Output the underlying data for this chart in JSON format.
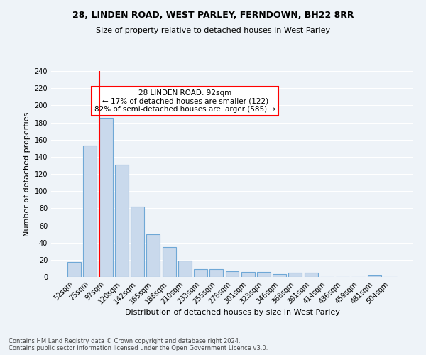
{
  "title": "28, LINDEN ROAD, WEST PARLEY, FERNDOWN, BH22 8RR",
  "subtitle": "Size of property relative to detached houses in West Parley",
  "xlabel": "Distribution of detached houses by size in West Parley",
  "ylabel": "Number of detached properties",
  "bar_color": "#c9d9ec",
  "bar_edge_color": "#6fa8d6",
  "vline_color": "red",
  "annotation_title": "28 LINDEN ROAD: 92sqm",
  "annotation_line2": "← 17% of detached houses are smaller (122)",
  "annotation_line3": "82% of semi-detached houses are larger (585) →",
  "categories": [
    "52sqm",
    "75sqm",
    "97sqm",
    "120sqm",
    "142sqm",
    "165sqm",
    "188sqm",
    "210sqm",
    "233sqm",
    "255sqm",
    "278sqm",
    "301sqm",
    "323sqm",
    "346sqm",
    "368sqm",
    "391sqm",
    "414sqm",
    "436sqm",
    "459sqm",
    "481sqm",
    "504sqm"
  ],
  "values": [
    17,
    153,
    185,
    131,
    82,
    50,
    35,
    19,
    9,
    9,
    7,
    6,
    6,
    3,
    5,
    5,
    0,
    0,
    0,
    2,
    0
  ],
  "ylim": [
    0,
    240
  ],
  "yticks": [
    0,
    20,
    40,
    60,
    80,
    100,
    120,
    140,
    160,
    180,
    200,
    220,
    240
  ],
  "footnote1": "Contains HM Land Registry data © Crown copyright and database right 2024.",
  "footnote2": "Contains public sector information licensed under the Open Government Licence v3.0.",
  "bg_color": "#eef3f8",
  "plot_bg_color": "#eef3f8",
  "title_fontsize": 9,
  "subtitle_fontsize": 8,
  "ylabel_fontsize": 8,
  "xlabel_fontsize": 8,
  "tick_fontsize": 7,
  "footnote_fontsize": 6,
  "ann_fontsize": 7.5
}
